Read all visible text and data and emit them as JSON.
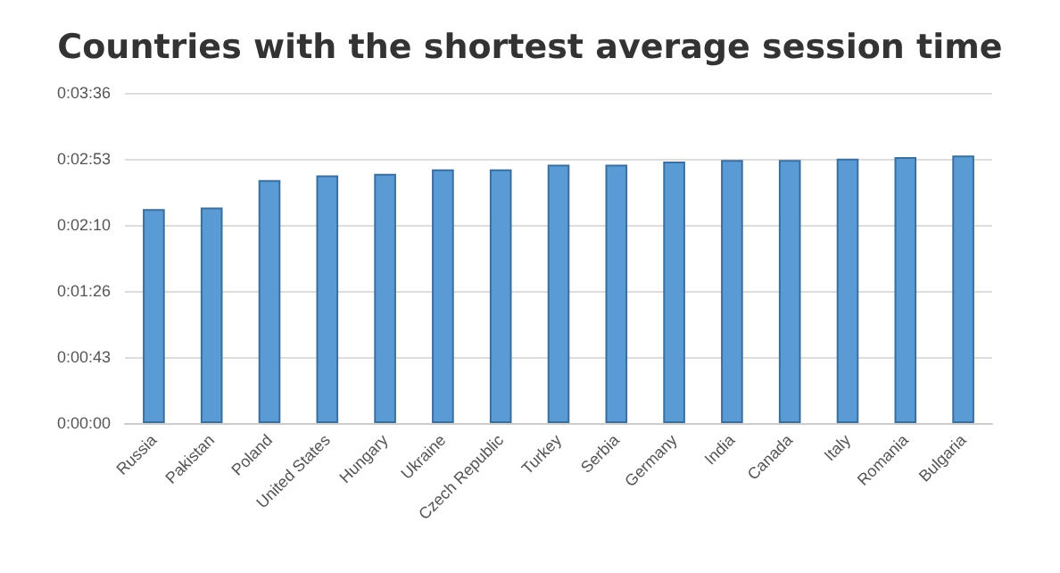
{
  "chart_data": {
    "type": "bar",
    "title": "Countries with the shortest average session time",
    "categories": [
      "Russia",
      "Pakistan",
      "Poland",
      "United States",
      "Hungary",
      "Ukraine",
      "Czech Republic",
      "Turkey",
      "Serbia",
      "Germany",
      "India",
      "Canada",
      "Italy",
      "Romania",
      "Bulgaria"
    ],
    "values": [
      140,
      141,
      159,
      162,
      163,
      166,
      166,
      169,
      169,
      171,
      172,
      172,
      173,
      174,
      175
    ],
    "color": "#5b9bd5",
    "ylim": [
      0,
      216
    ],
    "yticks": [
      {
        "value": 0,
        "label": "0:00:00"
      },
      {
        "value": 43.2,
        "label": "0:00:43"
      },
      {
        "value": 86.4,
        "label": "0:01:26"
      },
      {
        "value": 129.6,
        "label": "0:02:10"
      },
      {
        "value": 172.8,
        "label": "0:02:53"
      },
      {
        "value": 216,
        "label": "0:03:36"
      }
    ],
    "grid": "y"
  }
}
